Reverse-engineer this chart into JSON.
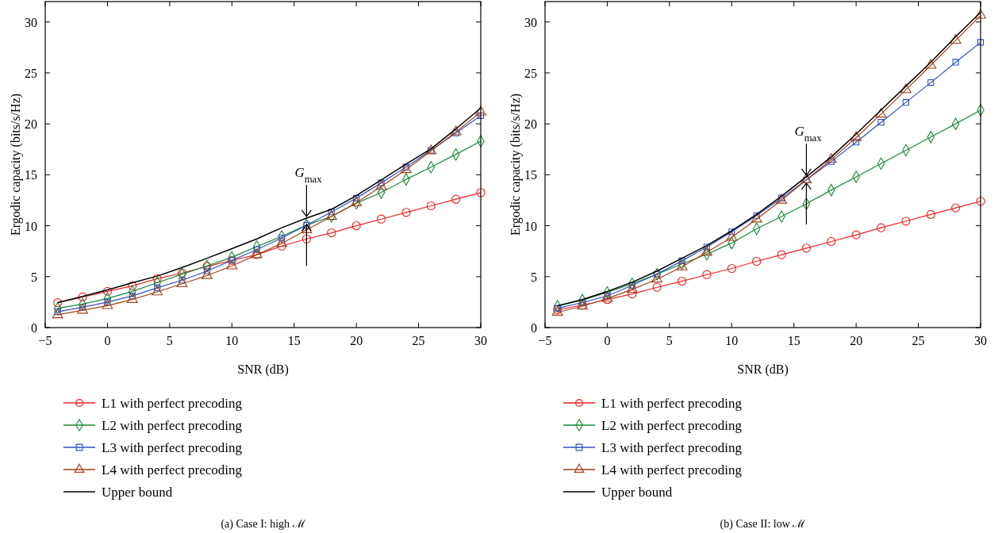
{
  "chart_data": [
    {
      "type": "line",
      "title": "(a)  Case I: high ℳ",
      "xlabel": "SNR (dB)",
      "ylabel": "Ergodic capacity (bits/s/Hz)",
      "x": [
        -4,
        -2,
        0,
        2,
        4,
        6,
        8,
        10,
        12,
        14,
        16,
        18,
        20,
        22,
        24,
        26,
        28,
        30
      ],
      "xlim": [
        -5,
        30
      ],
      "xticks": [
        {
          "value": -5,
          "label": "−5"
        },
        0,
        5,
        10,
        15,
        20,
        25,
        30
      ],
      "ylim": [
        0,
        32
      ],
      "yticks": [
        0,
        5,
        10,
        15,
        20,
        25,
        30
      ],
      "legend": "bottom",
      "annotations": [
        {
          "text": "G$_{max}$",
          "x": 16,
          "y": 10.75
        }
      ],
      "series": [
        {
          "name": "L1 with perfect precoding",
          "color": "#ee2222",
          "marker": "circle",
          "values": [
            2.44,
            3.0,
            3.55,
            4.1,
            4.8,
            5.35,
            6.0,
            6.6,
            7.15,
            8.0,
            8.7,
            9.3,
            10.0,
            10.65,
            11.3,
            11.95,
            12.6,
            13.25
          ]
        },
        {
          "name": "L2 with perfect precoding",
          "color": "#1a8a3a",
          "marker": "diamond",
          "values": [
            1.9,
            2.3,
            2.85,
            3.55,
            4.4,
            5.25,
            6.05,
            6.9,
            7.95,
            8.95,
            10.05,
            10.9,
            12.2,
            13.25,
            14.55,
            15.75,
            17.0,
            18.3
          ]
        },
        {
          "name": "L3 with perfect precoding",
          "color": "#3050c0",
          "marker": "square",
          "values": [
            1.55,
            2.0,
            2.5,
            3.1,
            3.9,
            4.65,
            5.55,
            6.6,
            7.65,
            8.8,
            10.05,
            11.35,
            12.7,
            14.2,
            15.75,
            17.4,
            19.1,
            20.8
          ]
        },
        {
          "name": "L4 with perfect precoding",
          "color": "#a0401a",
          "marker": "triangle",
          "values": [
            1.25,
            1.7,
            2.15,
            2.75,
            3.5,
            4.3,
            5.1,
            6.05,
            7.15,
            8.25,
            9.6,
            10.9,
            12.25,
            13.85,
            15.5,
            17.35,
            19.2,
            21.15
          ]
        },
        {
          "name": "Upper bound",
          "color": "#000000",
          "marker": "none",
          "values": [
            2.45,
            3.05,
            3.7,
            4.4,
            5.05,
            5.9,
            6.8,
            7.75,
            8.7,
            9.8,
            10.75,
            11.6,
            12.95,
            14.5,
            16.05,
            17.55,
            19.5,
            21.55
          ]
        }
      ]
    },
    {
      "type": "line",
      "title": "(b)  Case II: low ℳ",
      "xlabel": "SNR (dB)",
      "ylabel": "Ergodic capacity (bits/s/Hz)",
      "x": [
        -4,
        -2,
        0,
        2,
        4,
        6,
        8,
        10,
        12,
        14,
        16,
        18,
        20,
        22,
        24,
        26,
        28,
        30
      ],
      "xlim": [
        -5,
        30
      ],
      "xticks": [
        {
          "value": -5,
          "label": "−5"
        },
        0,
        5,
        10,
        15,
        20,
        25,
        30
      ],
      "ylim": [
        0,
        32
      ],
      "yticks": [
        0,
        5,
        10,
        15,
        20,
        25,
        30
      ],
      "legend": "bottom",
      "annotations": [
        {
          "text": "G$_{max}$",
          "x": 16,
          "y": 14.8
        }
      ],
      "series": [
        {
          "name": "L1 with perfect precoding",
          "color": "#ee2222",
          "marker": "circle",
          "values": [
            1.75,
            2.2,
            2.75,
            3.3,
            3.95,
            4.55,
            5.2,
            5.8,
            6.5,
            7.15,
            7.8,
            8.45,
            9.1,
            9.8,
            10.45,
            11.1,
            11.75,
            12.4
          ]
        },
        {
          "name": "L2 with perfect precoding",
          "color": "#1a8a3a",
          "marker": "diamond",
          "values": [
            2.1,
            2.7,
            3.45,
            4.3,
            5.25,
            6.25,
            7.2,
            8.3,
            9.7,
            10.9,
            12.15,
            13.5,
            14.8,
            16.1,
            17.4,
            18.7,
            20.0,
            21.35
          ]
        },
        {
          "name": "L3 with perfect precoding",
          "color": "#3050c0",
          "marker": "square",
          "values": [
            1.9,
            2.45,
            3.1,
            4.15,
            5.25,
            6.55,
            7.9,
            9.4,
            11.0,
            12.7,
            14.5,
            16.3,
            18.2,
            20.15,
            22.1,
            24.05,
            26.05,
            28.0
          ]
        },
        {
          "name": "L4 with perfect precoding",
          "color": "#a0401a",
          "marker": "triangle",
          "values": [
            1.5,
            2.1,
            2.85,
            3.75,
            4.75,
            5.95,
            7.4,
            8.85,
            10.65,
            12.5,
            14.5,
            16.5,
            18.65,
            20.95,
            23.35,
            25.75,
            28.2,
            30.65
          ]
        },
        {
          "name": "Upper bound",
          "color": "#000000",
          "marker": "none",
          "values": [
            2.15,
            2.75,
            3.55,
            4.45,
            5.55,
            6.8,
            8.05,
            9.5,
            11.1,
            12.9,
            14.8,
            16.75,
            19.0,
            21.35,
            23.7,
            26.05,
            28.55,
            30.95
          ]
        }
      ]
    }
  ]
}
